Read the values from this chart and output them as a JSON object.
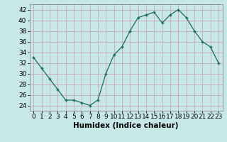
{
  "x": [
    0,
    1,
    2,
    3,
    4,
    5,
    6,
    7,
    8,
    9,
    10,
    11,
    12,
    13,
    14,
    15,
    16,
    17,
    18,
    19,
    20,
    21,
    22,
    23
  ],
  "y": [
    33,
    31,
    29,
    27,
    25,
    25,
    24.5,
    24,
    25,
    30,
    33.5,
    35,
    38,
    40.5,
    41,
    41.5,
    39.5,
    41,
    42,
    40.5,
    38,
    36,
    35,
    32
  ],
  "line_color": "#1a6b5a",
  "marker": "+",
  "bg_color": "#c8e8e8",
  "grid_color": "#b8d8d8",
  "xlabel": "Humidex (Indice chaleur)",
  "ylim": [
    23,
    43
  ],
  "xlim": [
    -0.5,
    23.5
  ],
  "yticks": [
    24,
    26,
    28,
    30,
    32,
    34,
    36,
    38,
    40,
    42
  ],
  "xticks": [
    0,
    1,
    2,
    3,
    4,
    5,
    6,
    7,
    8,
    9,
    10,
    11,
    12,
    13,
    14,
    15,
    16,
    17,
    18,
    19,
    20,
    21,
    22,
    23
  ],
  "label_fontsize": 7.5,
  "tick_fontsize": 6.5,
  "marker_size": 3,
  "line_width": 0.9
}
